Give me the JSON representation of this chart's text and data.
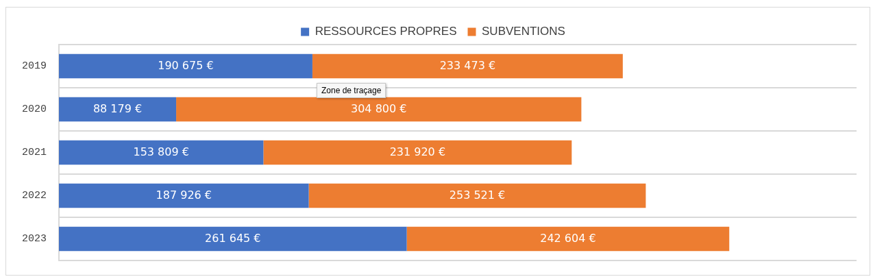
{
  "chart_data": {
    "type": "bar",
    "orientation": "horizontal",
    "stacked": true,
    "categories": [
      "2019",
      "2020",
      "2021",
      "2022",
      "2023"
    ],
    "series": [
      {
        "name": "RESSOURCES PROPRES",
        "color": "#4472c4",
        "values": [
          190675,
          88179,
          153809,
          187926,
          261645
        ],
        "value_labels": [
          "190 675 €",
          "88 179 €",
          "153 809 €",
          "187 926 €",
          "261 645 €"
        ]
      },
      {
        "name": "SUBVENTIONS",
        "color": "#ed7d31",
        "values": [
          233473,
          304800,
          231920,
          253521,
          242604
        ],
        "value_labels": [
          "233 473 €",
          "304 800 €",
          "231 920 €",
          "253 521 €",
          "242 604 €"
        ]
      }
    ],
    "xlim": [
      0,
      600000
    ],
    "tick_labels": "y",
    "grid": "y",
    "legend": "top",
    "annotations": [
      "Zone de traçage"
    ]
  }
}
